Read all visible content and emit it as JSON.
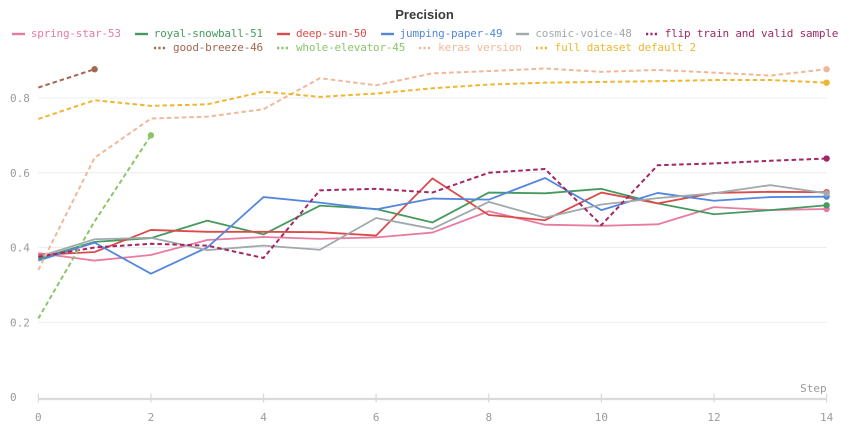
{
  "chart_data": {
    "type": "line",
    "title": "Precision",
    "xlabel": "Step",
    "ylabel": "",
    "x_range": [
      0,
      14
    ],
    "ylim": [
      0,
      1
    ],
    "x_ticks": [
      0,
      2,
      4,
      6,
      8,
      10,
      12,
      14
    ],
    "x_tick_labels": [
      "0",
      "2",
      "4",
      "6",
      "8",
      "10",
      "12",
      "14"
    ],
    "y_ticks": [
      0,
      0.2,
      0.4,
      0.6,
      0.8
    ],
    "y_tick_labels": [
      "0",
      "0.2",
      "0.4",
      "0.6",
      "0.8"
    ],
    "grid": "horizontal-only",
    "legend_position": "top",
    "legend_rows": 2,
    "series": [
      {
        "name": "spring-star-53",
        "color": "#E87B9F",
        "line_style": "solid",
        "legend_row": 0,
        "x": [
          0,
          1,
          2,
          3,
          4,
          5,
          6,
          7,
          8,
          9,
          10,
          11,
          12,
          13,
          14
        ],
        "values": [
          0.385,
          0.365,
          0.38,
          0.42,
          0.428,
          0.423,
          0.427,
          0.44,
          0.497,
          0.461,
          0.458,
          0.462,
          0.508,
          0.5,
          0.503
        ]
      },
      {
        "name": "royal-snowball-51",
        "color": "#479A5F",
        "line_style": "solid",
        "legend_row": 0,
        "x": [
          0,
          1,
          2,
          3,
          4,
          5,
          6,
          7,
          8,
          9,
          10,
          11,
          12,
          13,
          14
        ],
        "values": [
          0.37,
          0.415,
          0.425,
          0.472,
          0.435,
          0.512,
          0.503,
          0.467,
          0.547,
          0.545,
          0.557,
          0.518,
          0.489,
          0.5,
          0.513
        ]
      },
      {
        "name": "deep-sun-50",
        "color": "#DA4C4C",
        "line_style": "solid",
        "legend_row": 0,
        "x": [
          0,
          1,
          2,
          3,
          4,
          5,
          6,
          7,
          8,
          9,
          10,
          11,
          12,
          13,
          14
        ],
        "values": [
          0.38,
          0.388,
          0.447,
          0.442,
          0.442,
          0.441,
          0.432,
          0.585,
          0.487,
          0.473,
          0.547,
          0.518,
          0.546,
          0.549,
          0.548
        ]
      },
      {
        "name": "jumping-paper-49",
        "color": "#5387DD",
        "line_style": "solid",
        "legend_row": 0,
        "x": [
          0,
          1,
          2,
          3,
          4,
          5,
          6,
          7,
          8,
          9,
          10,
          11,
          12,
          13,
          14
        ],
        "values": [
          0.365,
          0.413,
          0.33,
          0.4,
          0.535,
          0.52,
          0.502,
          0.531,
          0.528,
          0.586,
          0.5,
          0.546,
          0.525,
          0.535,
          0.536
        ]
      },
      {
        "name": "cosmic-voice-48",
        "color": "#A1A9AD",
        "line_style": "solid",
        "legend_row": 0,
        "x": [
          0,
          1,
          2,
          3,
          4,
          5,
          6,
          7,
          8,
          9,
          10,
          11,
          12,
          13,
          14
        ],
        "values": [
          0.375,
          0.422,
          0.426,
          0.393,
          0.405,
          0.394,
          0.479,
          0.45,
          0.522,
          0.48,
          0.515,
          0.532,
          0.545,
          0.567,
          0.545
        ]
      },
      {
        "name": "flip train and valid sample",
        "color": "#A12864",
        "line_style": "dashed",
        "legend_row": 0,
        "x": [
          0,
          1,
          2,
          3,
          4,
          5,
          6,
          7,
          8,
          9,
          10,
          11,
          12,
          13,
          14
        ],
        "values": [
          0.375,
          0.4,
          0.41,
          0.405,
          0.372,
          0.553,
          0.557,
          0.547,
          0.6,
          0.61,
          0.46,
          0.62,
          0.625,
          0.632,
          0.638
        ]
      },
      {
        "name": "good-breeze-46",
        "color": "#A46750",
        "line_style": "dashed",
        "legend_row": 1,
        "x": [
          0,
          1
        ],
        "values": [
          0.828,
          0.877
        ]
      },
      {
        "name": "whole-elevator-45",
        "color": "#8CC46A",
        "line_style": "dashed",
        "legend_row": 1,
        "x": [
          0,
          1,
          2
        ],
        "values": [
          0.21,
          0.47,
          0.7
        ]
      },
      {
        "name": "keras version",
        "color": "#F0B899",
        "line_style": "dashed",
        "legend_row": 1,
        "x": [
          0,
          1,
          2,
          3,
          4,
          5,
          6,
          7,
          8,
          9,
          10,
          11,
          12,
          13,
          14
        ],
        "values": [
          0.34,
          0.64,
          0.745,
          0.75,
          0.77,
          0.853,
          0.834,
          0.866,
          0.872,
          0.879,
          0.87,
          0.875,
          0.868,
          0.86,
          0.877
        ]
      },
      {
        "name": "full dataset default 2",
        "color": "#EDB732",
        "line_style": "dashed",
        "legend_row": 1,
        "x": [
          0,
          1,
          2,
          3,
          4,
          5,
          6,
          7,
          8,
          9,
          10,
          11,
          12,
          13,
          14
        ],
        "values": [
          0.744,
          0.794,
          0.779,
          0.783,
          0.817,
          0.803,
          0.812,
          0.826,
          0.836,
          0.841,
          0.843,
          0.845,
          0.848,
          0.848,
          0.841
        ]
      }
    ]
  },
  "colors": {
    "background": "#ffffff",
    "gridline": "#ececec",
    "axis_line": "#dadada",
    "tick_label": "#9b9b9b",
    "title_text": "#3a3a3a"
  }
}
